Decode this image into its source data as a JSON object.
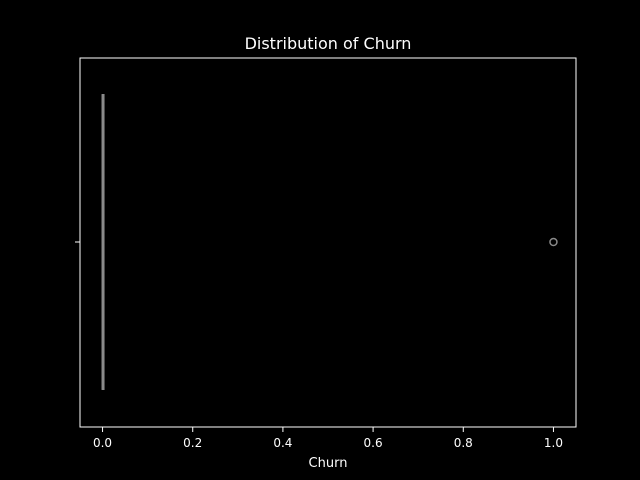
{
  "chart_data": {
    "type": "box",
    "title": "Distribution of Churn",
    "xlabel": "Churn",
    "ylabel": "",
    "xlim": [
      -0.05,
      1.05
    ],
    "xticks": [
      0.0,
      0.2,
      0.4,
      0.6,
      0.8,
      1.0
    ],
    "xtick_labels": [
      "0.0",
      "0.2",
      "0.4",
      "0.6",
      "0.8",
      "1.0"
    ],
    "orientation": "horizontal",
    "grid": false,
    "box": {
      "min": 0.0,
      "q1": 0.0,
      "median": 0.0,
      "q3": 0.0,
      "max": 0.0,
      "outliers": [
        1.0
      ]
    },
    "colors": {
      "background": "#000000",
      "axes": "#ffffff",
      "box": "#8a8a8a",
      "text": "#ffffff"
    }
  }
}
